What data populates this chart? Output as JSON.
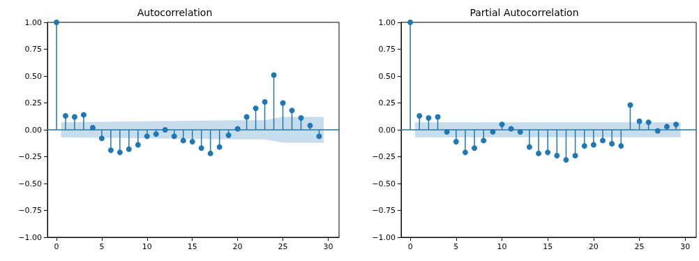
{
  "chart_data": [
    {
      "type": "lollipop",
      "title": "Autocorrelation",
      "marker": "circle",
      "grid": false,
      "x": [
        0,
        1,
        2,
        3,
        4,
        5,
        6,
        7,
        8,
        9,
        10,
        11,
        12,
        13,
        14,
        15,
        16,
        17,
        18,
        19,
        20,
        21,
        22,
        23,
        24,
        25,
        26,
        27,
        28,
        29
      ],
      "series": [
        {
          "color": "#1f77b4",
          "values": [
            1,
            0.13,
            0.12,
            0.14,
            0.02,
            -0.08,
            -0.19,
            -0.21,
            -0.18,
            -0.14,
            -0.06,
            -0.04,
            0,
            -0.06,
            -0.1,
            -0.11,
            -0.17,
            -0.22,
            -0.16,
            -0.05,
            0.01,
            0.12,
            0.2,
            0.26,
            0.51,
            0.25,
            0.18,
            0.11,
            0.04,
            -0.06
          ]
        },
        {
          "type": "line",
          "marker": "none",
          "color": "#1f77b4",
          "x": [
            -1,
            0.5,
            10,
            20,
            23,
            25,
            29.5,
            31.2
          ],
          "values": [
            0,
            0,
            0,
            0,
            0,
            0,
            0,
            0
          ],
          "lower": [
            null,
            -0.07,
            -0.08,
            -0.09,
            -0.09,
            -0.12,
            -0.12,
            null
          ],
          "upper": [
            null,
            0.07,
            0.08,
            0.09,
            0.09,
            0.12,
            0.12,
            null
          ]
        }
      ],
      "xlim": [
        -1,
        31.2
      ],
      "xticks": [
        0,
        5,
        10,
        15,
        20,
        25,
        30
      ],
      "ylim": [
        -1,
        1
      ],
      "yticks": [
        {
          "value": -1,
          "label": "−1.00"
        },
        {
          "value": -0.75,
          "label": "−0.75"
        },
        {
          "value": -0.5,
          "label": "−0.50"
        },
        {
          "value": -0.25,
          "label": "−0.25"
        },
        {
          "value": 0,
          "label": "0.00"
        },
        {
          "value": 0.25,
          "label": "0.25"
        },
        {
          "value": 0.5,
          "label": "0.50"
        },
        {
          "value": 0.75,
          "label": "0.75"
        },
        {
          "value": 1,
          "label": "1.00"
        }
      ]
    },
    {
      "type": "lollipop",
      "title": "Partial Autocorrelation",
      "marker": "circle",
      "grid": false,
      "x": [
        0,
        1,
        2,
        3,
        4,
        5,
        6,
        7,
        8,
        9,
        10,
        11,
        12,
        13,
        14,
        15,
        16,
        17,
        18,
        19,
        20,
        21,
        22,
        23,
        24,
        25,
        26,
        27,
        28,
        29
      ],
      "series": [
        {
          "color": "#1f77b4",
          "values": [
            1,
            0.13,
            0.11,
            0.12,
            -0.02,
            -0.11,
            -0.21,
            -0.17,
            -0.1,
            -0.02,
            0.05,
            0.01,
            -0.02,
            -0.16,
            -0.22,
            -0.21,
            -0.24,
            -0.28,
            -0.24,
            -0.15,
            -0.14,
            -0.1,
            -0.13,
            -0.15,
            0.23,
            0.08,
            0.07,
            -0.01,
            0.03,
            0.05
          ]
        },
        {
          "type": "line",
          "marker": "none",
          "color": "#1f77b4",
          "x": [
            -1,
            0.5,
            29.5,
            31.2
          ],
          "values": [
            0,
            0,
            0,
            0
          ],
          "lower": [
            null,
            -0.07,
            -0.07,
            null
          ],
          "upper": [
            null,
            0.07,
            0.07,
            null
          ]
        }
      ],
      "xlim": [
        -1,
        31.2
      ],
      "xticks": [
        0,
        5,
        10,
        15,
        20,
        25,
        30
      ],
      "ylim": [
        -1,
        1
      ],
      "yticks": [
        {
          "value": -1,
          "label": "−1.00"
        },
        {
          "value": -0.75,
          "label": "−0.75"
        },
        {
          "value": -0.5,
          "label": "−0.50"
        },
        {
          "value": -0.25,
          "label": "−0.25"
        },
        {
          "value": 0,
          "label": "0.00"
        },
        {
          "value": 0.25,
          "label": "0.25"
        },
        {
          "value": 0.5,
          "label": "0.50"
        },
        {
          "value": 0.75,
          "label": "0.75"
        },
        {
          "value": 1,
          "label": "1.00"
        }
      ]
    }
  ]
}
